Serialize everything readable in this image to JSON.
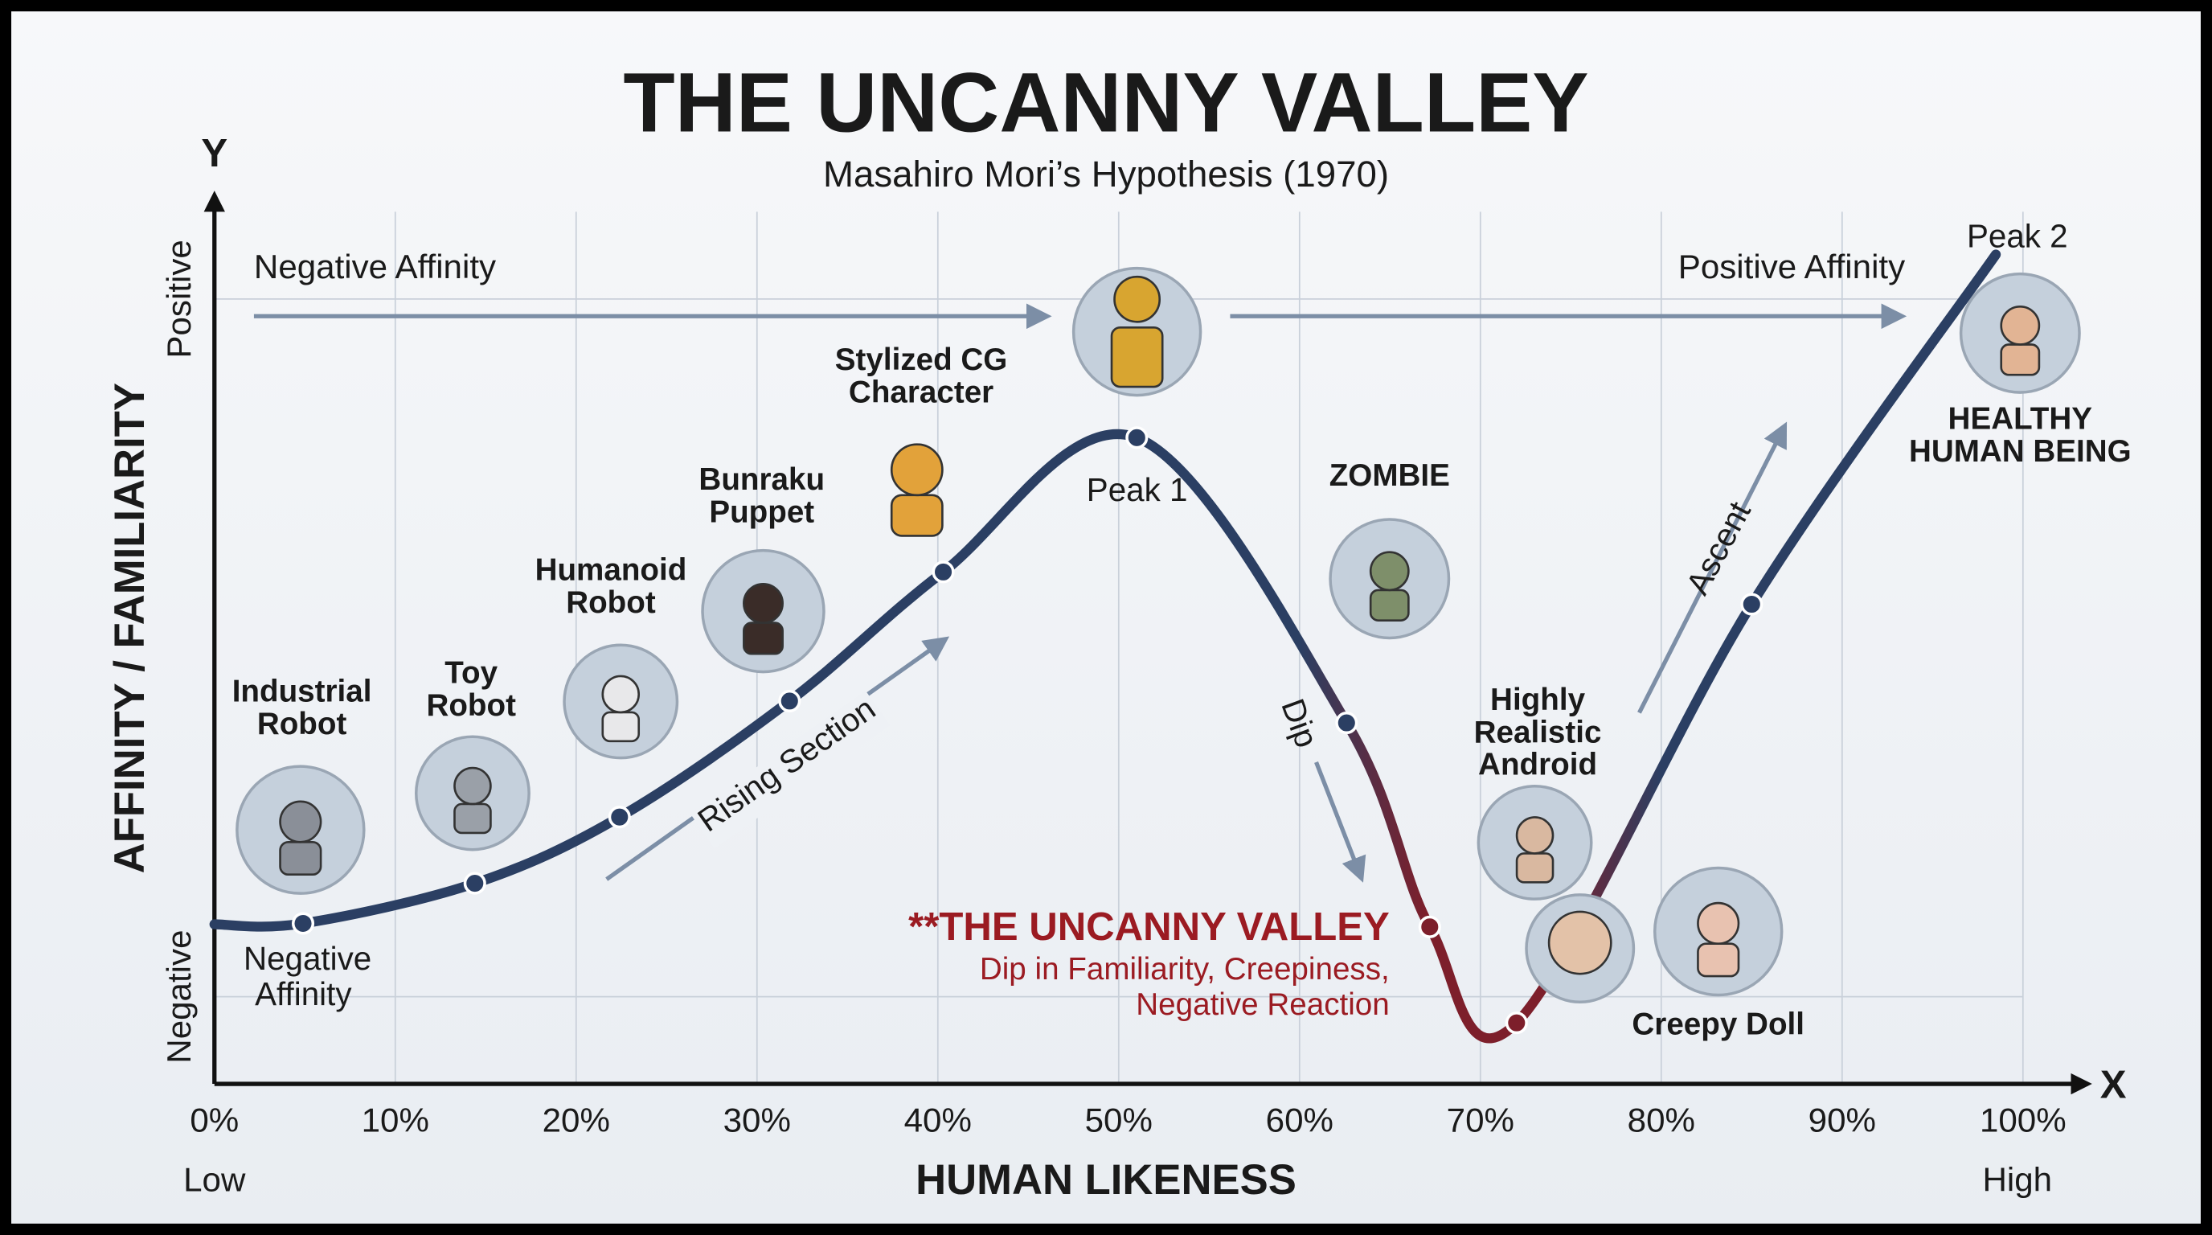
{
  "chart_data": {
    "type": "line",
    "title": "THE UNCANNY VALLEY",
    "subtitle": "Masahiro Mori’s Hypothesis (1970)",
    "x_axis_label": "HUMAN LIKENESS",
    "y_axis_label": "AFFINITY / FAMILIARITY",
    "x_axis_letter": "X",
    "y_axis_letter": "Y",
    "x_low_label": "Low",
    "x_high_label": "High",
    "xlim": [
      0,
      100
    ],
    "xticks": [
      {
        "value": 0,
        "label": "0%"
      },
      {
        "value": 10,
        "label": "10%"
      },
      {
        "value": 20,
        "label": "20%"
      },
      {
        "value": 30,
        "label": "30%"
      },
      {
        "value": 40,
        "label": "40%"
      },
      {
        "value": 50,
        "label": "50%"
      },
      {
        "value": 60,
        "label": "60%"
      },
      {
        "value": 70,
        "label": "70%"
      },
      {
        "value": 80,
        "label": "80%"
      },
      {
        "value": 90,
        "label": "90%"
      },
      {
        "value": 100,
        "label": "100%"
      }
    ],
    "ylim": [
      0,
      100
    ],
    "yticks": [
      {
        "value": 10,
        "label": "Negative"
      },
      {
        "value": 90,
        "label": "Positive"
      }
    ],
    "grid": true,
    "series": [
      {
        "color": "#2b3f63",
        "valley_color": "#7d1f2b",
        "x": [
          0,
          4.9,
          14.4,
          22.4,
          31.8,
          40.3,
          51.0,
          62.6,
          67.2,
          72.0,
          85,
          98.5
        ],
        "values": [
          18.3,
          18.4,
          23.0,
          30.6,
          43.9,
          58.7,
          74.1,
          41.4,
          18.0,
          7.0,
          55,
          95.1
        ]
      }
    ],
    "annotations": {
      "negative_affinity_top": "Negative Affinity",
      "positive_affinity_top": "Positive Affinity",
      "peak_1": "Peak 1",
      "peak_2": "Peak 2",
      "negative_affinity_low": [
        "Negative",
        "Affinity"
      ],
      "rising_section": "Rising Section",
      "dip": "Dip",
      "ascent": "Ascent",
      "valley_title": "**THE UNCANNY VALLEY",
      "valley_note": [
        "Dip in Familiarity, Creepiness,",
        "Negative Reaction"
      ]
    },
    "figures": [
      {
        "label": [
          "Industrial",
          "Robot"
        ]
      },
      {
        "label": [
          "Toy",
          "Robot"
        ]
      },
      {
        "label": [
          "Humanoid",
          "Robot"
        ]
      },
      {
        "label": [
          "Bunraku",
          "Puppet"
        ]
      },
      {
        "label": [
          "Stylized CG",
          "Character"
        ]
      },
      {
        "label": [
          "ZOMBIE"
        ]
      },
      {
        "label": [
          "Highly",
          "Realistic",
          "Android"
        ]
      },
      {
        "label": [
          "Creepy Doll"
        ]
      },
      {
        "label": [
          "HEALTHY",
          "HUMAN BEING"
        ]
      }
    ]
  }
}
